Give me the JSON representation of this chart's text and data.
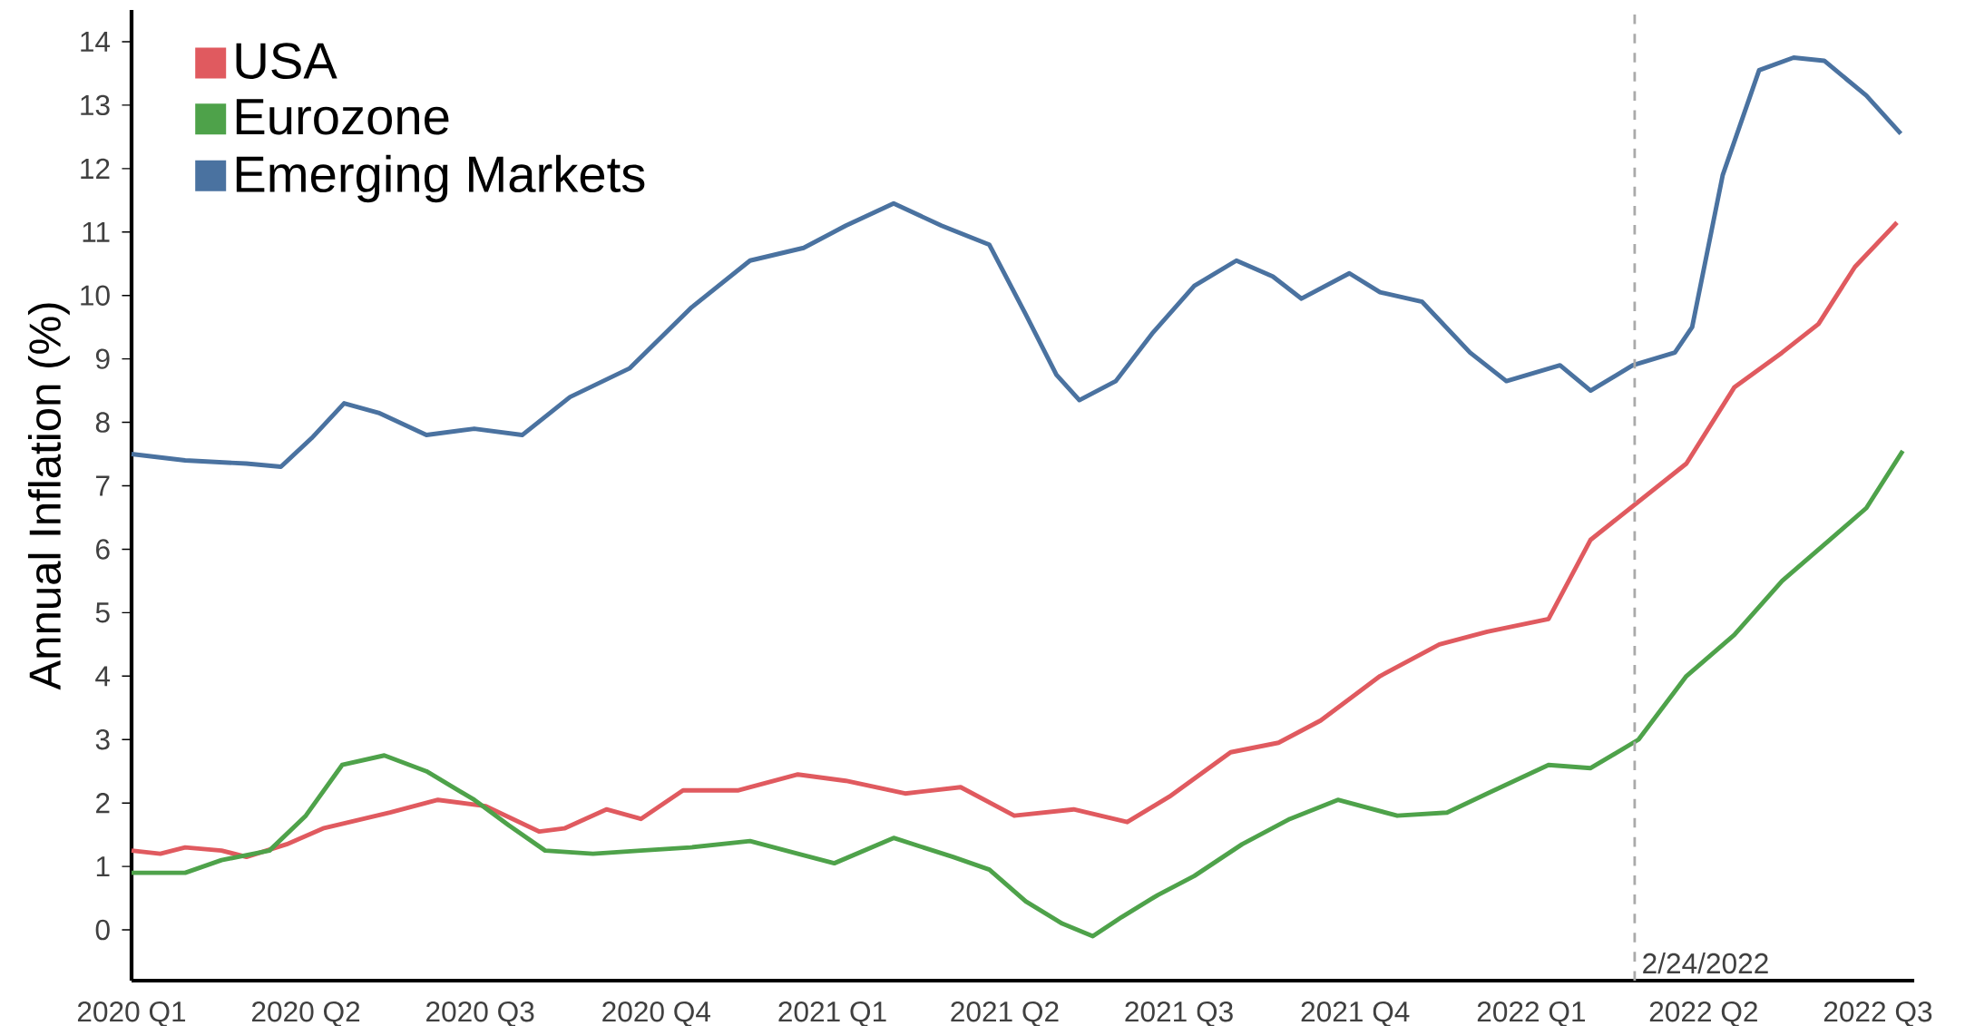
{
  "chart_data": {
    "type": "line",
    "ylabel": "Annual Inflation (%)",
    "xlim": [
      "2020-01-01",
      "2022-07-20"
    ],
    "ylim": [
      -0.8,
      14.5
    ],
    "xticks": [
      {
        "value": "2020-01-01",
        "label": "2020 Q1"
      },
      {
        "value": "2020-04-01",
        "label": "2020 Q2"
      },
      {
        "value": "2020-07-01",
        "label": "2020 Q3"
      },
      {
        "value": "2020-10-01",
        "label": "2020 Q4"
      },
      {
        "value": "2021-01-01",
        "label": "2021 Q1"
      },
      {
        "value": "2021-04-01",
        "label": "2021 Q2"
      },
      {
        "value": "2021-07-01",
        "label": "2021 Q3"
      },
      {
        "value": "2021-10-01",
        "label": "2021 Q4"
      },
      {
        "value": "2022-01-01",
        "label": "2022 Q1"
      },
      {
        "value": "2022-04-01",
        "label": "2022 Q2"
      },
      {
        "value": "2022-07-01",
        "label": "2022 Q3"
      }
    ],
    "yticks": [
      0,
      1,
      2,
      3,
      4,
      5,
      6,
      7,
      8,
      9,
      10,
      11,
      12,
      13,
      14
    ],
    "legend": "top left",
    "grid": false,
    "marker": "none",
    "line_style": "solid",
    "ref_lines": [
      {
        "axis": "x",
        "value": "2022-02-24",
        "label": "2/24/2022",
        "color": "#aaaaaa",
        "line_style": "dashed"
      }
    ],
    "series": [
      {
        "name": "USA",
        "color": "#e05a5f",
        "x": [
          "2020-01-01",
          "2020-01-16",
          "2020-01-29",
          "2020-02-17",
          "2020-03-01",
          "2020-03-22",
          "2020-04-10",
          "2020-05-15",
          "2020-06-09",
          "2020-07-04",
          "2020-08-01",
          "2020-08-14",
          "2020-09-05",
          "2020-09-23",
          "2020-10-15",
          "2020-11-13",
          "2020-12-14",
          "2021-01-08",
          "2021-02-08",
          "2021-03-09",
          "2021-04-06",
          "2021-05-07",
          "2021-06-04",
          "2021-06-26",
          "2021-07-28",
          "2021-08-22",
          "2021-09-13",
          "2021-10-14",
          "2021-11-14",
          "2021-12-09",
          "2022-01-10",
          "2022-02-01",
          "2022-02-26",
          "2022-03-23",
          "2022-04-17",
          "2022-05-12",
          "2022-05-31",
          "2022-06-19",
          "2022-07-11"
        ],
        "values": [
          1.25,
          1.2,
          1.3,
          1.25,
          1.15,
          1.35,
          1.6,
          1.85,
          2.05,
          1.95,
          1.55,
          1.6,
          1.9,
          1.75,
          2.2,
          2.2,
          2.45,
          2.35,
          2.15,
          2.25,
          1.8,
          1.9,
          1.7,
          2.1,
          2.8,
          2.95,
          3.3,
          4.0,
          4.5,
          4.7,
          4.9,
          6.15,
          6.75,
          7.35,
          8.55,
          9.1,
          9.55,
          10.45,
          11.15
        ]
      },
      {
        "name": "Eurozone",
        "color": "#4ea24a",
        "x": [
          "2020-01-01",
          "2020-01-29",
          "2020-02-17",
          "2020-03-13",
          "2020-04-01",
          "2020-04-20",
          "2020-05-12",
          "2020-06-03",
          "2020-06-28",
          "2020-07-16",
          "2020-08-04",
          "2020-08-29",
          "2020-09-23",
          "2020-10-19",
          "2020-11-19",
          "2020-12-14",
          "2021-01-02",
          "2021-02-02",
          "2021-03-05",
          "2021-03-24",
          "2021-04-12",
          "2021-05-01",
          "2021-05-17",
          "2021-06-01",
          "2021-06-20",
          "2021-07-09",
          "2021-08-03",
          "2021-08-28",
          "2021-09-22",
          "2021-10-23",
          "2021-11-18",
          "2021-12-09",
          "2022-01-10",
          "2022-02-01",
          "2022-02-26",
          "2022-03-23",
          "2022-04-17",
          "2022-05-12",
          "2022-06-06",
          "2022-06-25",
          "2022-07-14"
        ],
        "values": [
          0.9,
          0.9,
          1.1,
          1.25,
          1.8,
          2.6,
          2.75,
          2.5,
          2.05,
          1.65,
          1.25,
          1.2,
          1.25,
          1.3,
          1.4,
          1.2,
          1.05,
          1.45,
          1.15,
          0.95,
          0.45,
          0.1,
          -0.1,
          0.2,
          0.55,
          0.85,
          1.35,
          1.75,
          2.05,
          1.8,
          1.85,
          2.15,
          2.6,
          2.55,
          3.0,
          4.0,
          4.65,
          5.5,
          6.15,
          6.65,
          7.55
        ]
      },
      {
        "name": "Emerging Markets",
        "color": "#4a72a0",
        "x": [
          "2020-01-01",
          "2020-01-29",
          "2020-03-01",
          "2020-03-19",
          "2020-04-04",
          "2020-04-21",
          "2020-05-09",
          "2020-06-03",
          "2020-06-28",
          "2020-07-23",
          "2020-08-17",
          "2020-09-17",
          "2020-10-19",
          "2020-11-19",
          "2020-12-17",
          "2021-01-08",
          "2021-02-02",
          "2021-02-27",
          "2021-03-24",
          "2021-04-12",
          "2021-04-28",
          "2021-05-10",
          "2021-05-29",
          "2021-06-17",
          "2021-07-09",
          "2021-07-31",
          "2021-08-19",
          "2021-09-03",
          "2021-09-28",
          "2021-10-14",
          "2021-11-05",
          "2021-11-30",
          "2021-12-19",
          "2022-01-16",
          "2022-02-01",
          "2022-02-23",
          "2022-03-17",
          "2022-03-26",
          "2022-04-11",
          "2022-04-30",
          "2022-05-18",
          "2022-06-03",
          "2022-06-25",
          "2022-07-13"
        ],
        "values": [
          7.5,
          7.4,
          7.35,
          7.3,
          7.75,
          8.3,
          8.15,
          7.8,
          7.9,
          7.8,
          8.4,
          8.85,
          9.8,
          10.55,
          10.75,
          11.1,
          11.45,
          11.1,
          10.8,
          9.7,
          8.75,
          8.35,
          8.65,
          9.4,
          10.15,
          10.55,
          10.3,
          9.95,
          10.35,
          10.05,
          9.9,
          9.1,
          8.65,
          8.9,
          8.5,
          8.9,
          9.1,
          9.5,
          11.9,
          13.55,
          13.75,
          13.7,
          13.15,
          12.55
        ]
      }
    ]
  }
}
